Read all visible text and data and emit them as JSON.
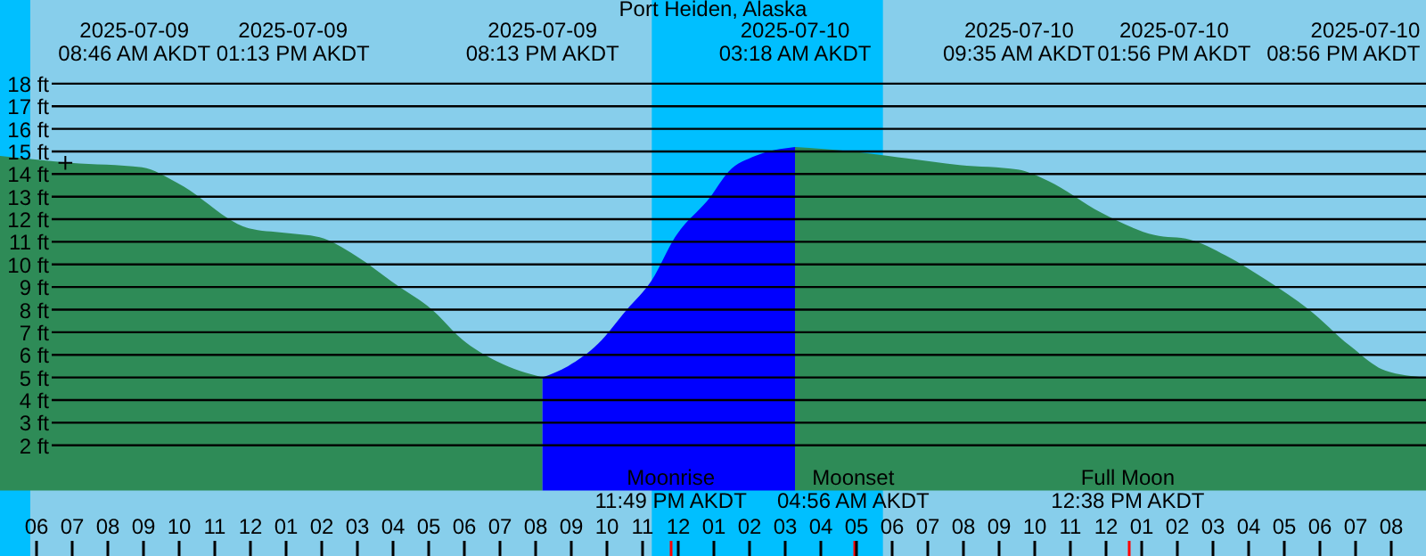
{
  "chart_data": {
    "type": "area",
    "title": "Port Heiden, Alaska",
    "xlim": [
      "2025-07-09T05:00",
      "2025-07-10T21:00"
    ],
    "ylim": [
      -2.9,
      21.7
    ],
    "xticks": [
      {
        "value": "2025-07-09T06:00",
        "label": "06"
      },
      {
        "value": "2025-07-09T07:00",
        "label": "07"
      },
      {
        "value": "2025-07-09T08:00",
        "label": "08"
      },
      {
        "value": "2025-07-09T09:00",
        "label": "09"
      },
      {
        "value": "2025-07-09T10:00",
        "label": "10"
      },
      {
        "value": "2025-07-09T11:00",
        "label": "11"
      },
      {
        "value": "2025-07-09T12:00",
        "label": "12"
      },
      {
        "value": "2025-07-09T13:00",
        "label": "01"
      },
      {
        "value": "2025-07-09T14:00",
        "label": "02"
      },
      {
        "value": "2025-07-09T15:00",
        "label": "03"
      },
      {
        "value": "2025-07-09T16:00",
        "label": "04"
      },
      {
        "value": "2025-07-09T17:00",
        "label": "05"
      },
      {
        "value": "2025-07-09T18:00",
        "label": "06"
      },
      {
        "value": "2025-07-09T19:00",
        "label": "07"
      },
      {
        "value": "2025-07-09T20:00",
        "label": "08"
      },
      {
        "value": "2025-07-09T21:00",
        "label": "09"
      },
      {
        "value": "2025-07-09T22:00",
        "label": "10"
      },
      {
        "value": "2025-07-09T23:00",
        "label": "11"
      },
      {
        "value": "2025-07-09T23:49",
        "label": null
      },
      {
        "value": "2025-07-10T00:00",
        "label": "12"
      },
      {
        "value": "2025-07-10T01:00",
        "label": "01"
      },
      {
        "value": "2025-07-10T02:00",
        "label": "02"
      },
      {
        "value": "2025-07-10T03:00",
        "label": "03"
      },
      {
        "value": "2025-07-10T04:00",
        "label": "04"
      },
      {
        "value": "2025-07-10T04:56",
        "label": null
      },
      {
        "value": "2025-07-10T05:00",
        "label": "05"
      },
      {
        "value": "2025-07-10T06:00",
        "label": "06"
      },
      {
        "value": "2025-07-10T07:00",
        "label": "07"
      },
      {
        "value": "2025-07-10T08:00",
        "label": "08"
      },
      {
        "value": "2025-07-10T09:00",
        "label": "09"
      },
      {
        "value": "2025-07-10T10:00",
        "label": "10"
      },
      {
        "value": "2025-07-10T11:00",
        "label": "11"
      },
      {
        "value": "2025-07-10T12:00",
        "label": "12"
      },
      {
        "value": "2025-07-10T12:38",
        "label": null
      },
      {
        "value": "2025-07-10T13:00",
        "label": "01"
      },
      {
        "value": "2025-07-10T14:00",
        "label": "02"
      },
      {
        "value": "2025-07-10T15:00",
        "label": "03"
      },
      {
        "value": "2025-07-10T16:00",
        "label": "04"
      },
      {
        "value": "2025-07-10T17:00",
        "label": "05"
      },
      {
        "value": "2025-07-10T18:00",
        "label": "06"
      },
      {
        "value": "2025-07-10T19:00",
        "label": "07"
      },
      {
        "value": "2025-07-10T20:00",
        "label": "08"
      }
    ],
    "x2lim": [
      "2025-07-09T05:00",
      "2025-07-10T21:00"
    ],
    "x2ticks": [
      {
        "value": "2025-07-09T08:46",
        "label": "2025-07-09\n08:46 AM AKDT"
      },
      {
        "value": "2025-07-09T13:13",
        "label": "2025-07-09\n01:13 PM AKDT"
      },
      {
        "value": "2025-07-09T20:13",
        "label": "2025-07-09\n08:13 PM AKDT"
      },
      {
        "value": "2025-07-10T03:18",
        "label": "2025-07-10\n03:18 AM AKDT"
      },
      {
        "value": "2025-07-10T09:35",
        "label": "2025-07-10\n09:35 AM AKDT"
      },
      {
        "value": "2025-07-10T13:56",
        "label": "2025-07-10\n01:56 PM AKDT"
      },
      {
        "value": "2025-07-10T20:56",
        "label": "2025-07-10\n08:56 PM AKDT"
      }
    ],
    "yticks": [
      {
        "value": 2,
        "label": "2 ft"
      },
      {
        "value": 3,
        "label": "3 ft"
      },
      {
        "value": 4,
        "label": "4 ft"
      },
      {
        "value": 5,
        "label": "5 ft"
      },
      {
        "value": 6,
        "label": "6 ft"
      },
      {
        "value": 7,
        "label": "7 ft"
      },
      {
        "value": 8,
        "label": "8 ft"
      },
      {
        "value": 9,
        "label": "9 ft"
      },
      {
        "value": 10,
        "label": "10 ft"
      },
      {
        "value": 11,
        "label": "11 ft"
      },
      {
        "value": 12,
        "label": "12 ft"
      },
      {
        "value": 13,
        "label": "13 ft"
      },
      {
        "value": 14,
        "label": "14 ft"
      },
      {
        "value": 15,
        "label": "15 ft"
      },
      {
        "value": 16,
        "label": "16 ft"
      },
      {
        "value": 17,
        "label": "17 ft"
      },
      {
        "value": 18,
        "label": "18 ft"
      }
    ],
    "grid": "y",
    "annotations": [
      "Moonrise\n11:49 PM AKDT",
      "Moonset\n04:56 AM AKDT",
      "Full Moon\n12:38 PM AKDT"
    ],
    "bands": [
      {
        "axis": "x",
        "from": "2025-07-09T05:00",
        "to": "2025-07-09T05:51",
        "color": "#00bfff"
      },
      {
        "axis": "x",
        "from": "2025-07-09T23:17",
        "to": "2025-07-10T05:46",
        "color": "#00bfff"
      }
    ],
    "series": [
      {
        "color": "#2e8b57",
        "x": [
          "2025-07-09T05:00",
          "2025-07-09T06:59",
          "2025-07-09T08:59",
          "2025-07-09T09:59",
          "2025-07-09T11:59",
          "2025-07-09T12:58",
          "2025-07-09T13:58",
          "2025-07-09T14:58",
          "2025-07-09T16:07",
          "2025-07-09T17:07",
          "2025-07-09T17:57",
          "2025-07-09T18:57",
          "2025-07-09T20:13"
        ],
        "values": [
          14.8,
          14.5,
          14.3,
          13.6,
          11.6,
          11.4,
          11.2,
          10.4,
          9.1,
          8.0,
          6.7,
          5.7,
          5.0
        ]
      },
      {
        "color": "#0000ff",
        "x": [
          "2025-07-09T20:13",
          "2025-07-09T20:56",
          "2025-07-09T21:47",
          "2025-07-09T22:35",
          "2025-07-09T23:17",
          "2025-07-09T23:56",
          "2025-07-10T00:56",
          "2025-07-10T01:26",
          "2025-07-10T02:11",
          "2025-07-10T03:18"
        ],
        "values": [
          5.0,
          5.5,
          6.5,
          8.0,
          9.3,
          11.2,
          13.0,
          14.1,
          14.8,
          15.2
        ]
      },
      {
        "color": "#2e8b57",
        "x": [
          "2025-07-10T03:18",
          "2025-07-10T04:55",
          "2025-07-10T05:55",
          "2025-07-10T07:55",
          "2025-07-10T09:33",
          "2025-07-10T10:24",
          "2025-07-10T11:53",
          "2025-07-10T13:23",
          "2025-07-10T14:23",
          "2025-07-10T15:23",
          "2025-07-10T16:32",
          "2025-07-10T17:43",
          "2025-07-10T18:52",
          "2025-07-10T19:52",
          "2025-07-10T21:00"
        ],
        "values": [
          15.2,
          15.0,
          14.8,
          14.4,
          14.2,
          13.7,
          12.3,
          11.3,
          11.1,
          10.4,
          9.3,
          8.0,
          6.4,
          5.3,
          5.0
        ]
      },
      {
        "type": "scatter",
        "color": "#000000",
        "marker": "cross",
        "x": [
          "2025-07-09T06:50"
        ],
        "values": [
          14.5
        ]
      }
    ]
  }
}
